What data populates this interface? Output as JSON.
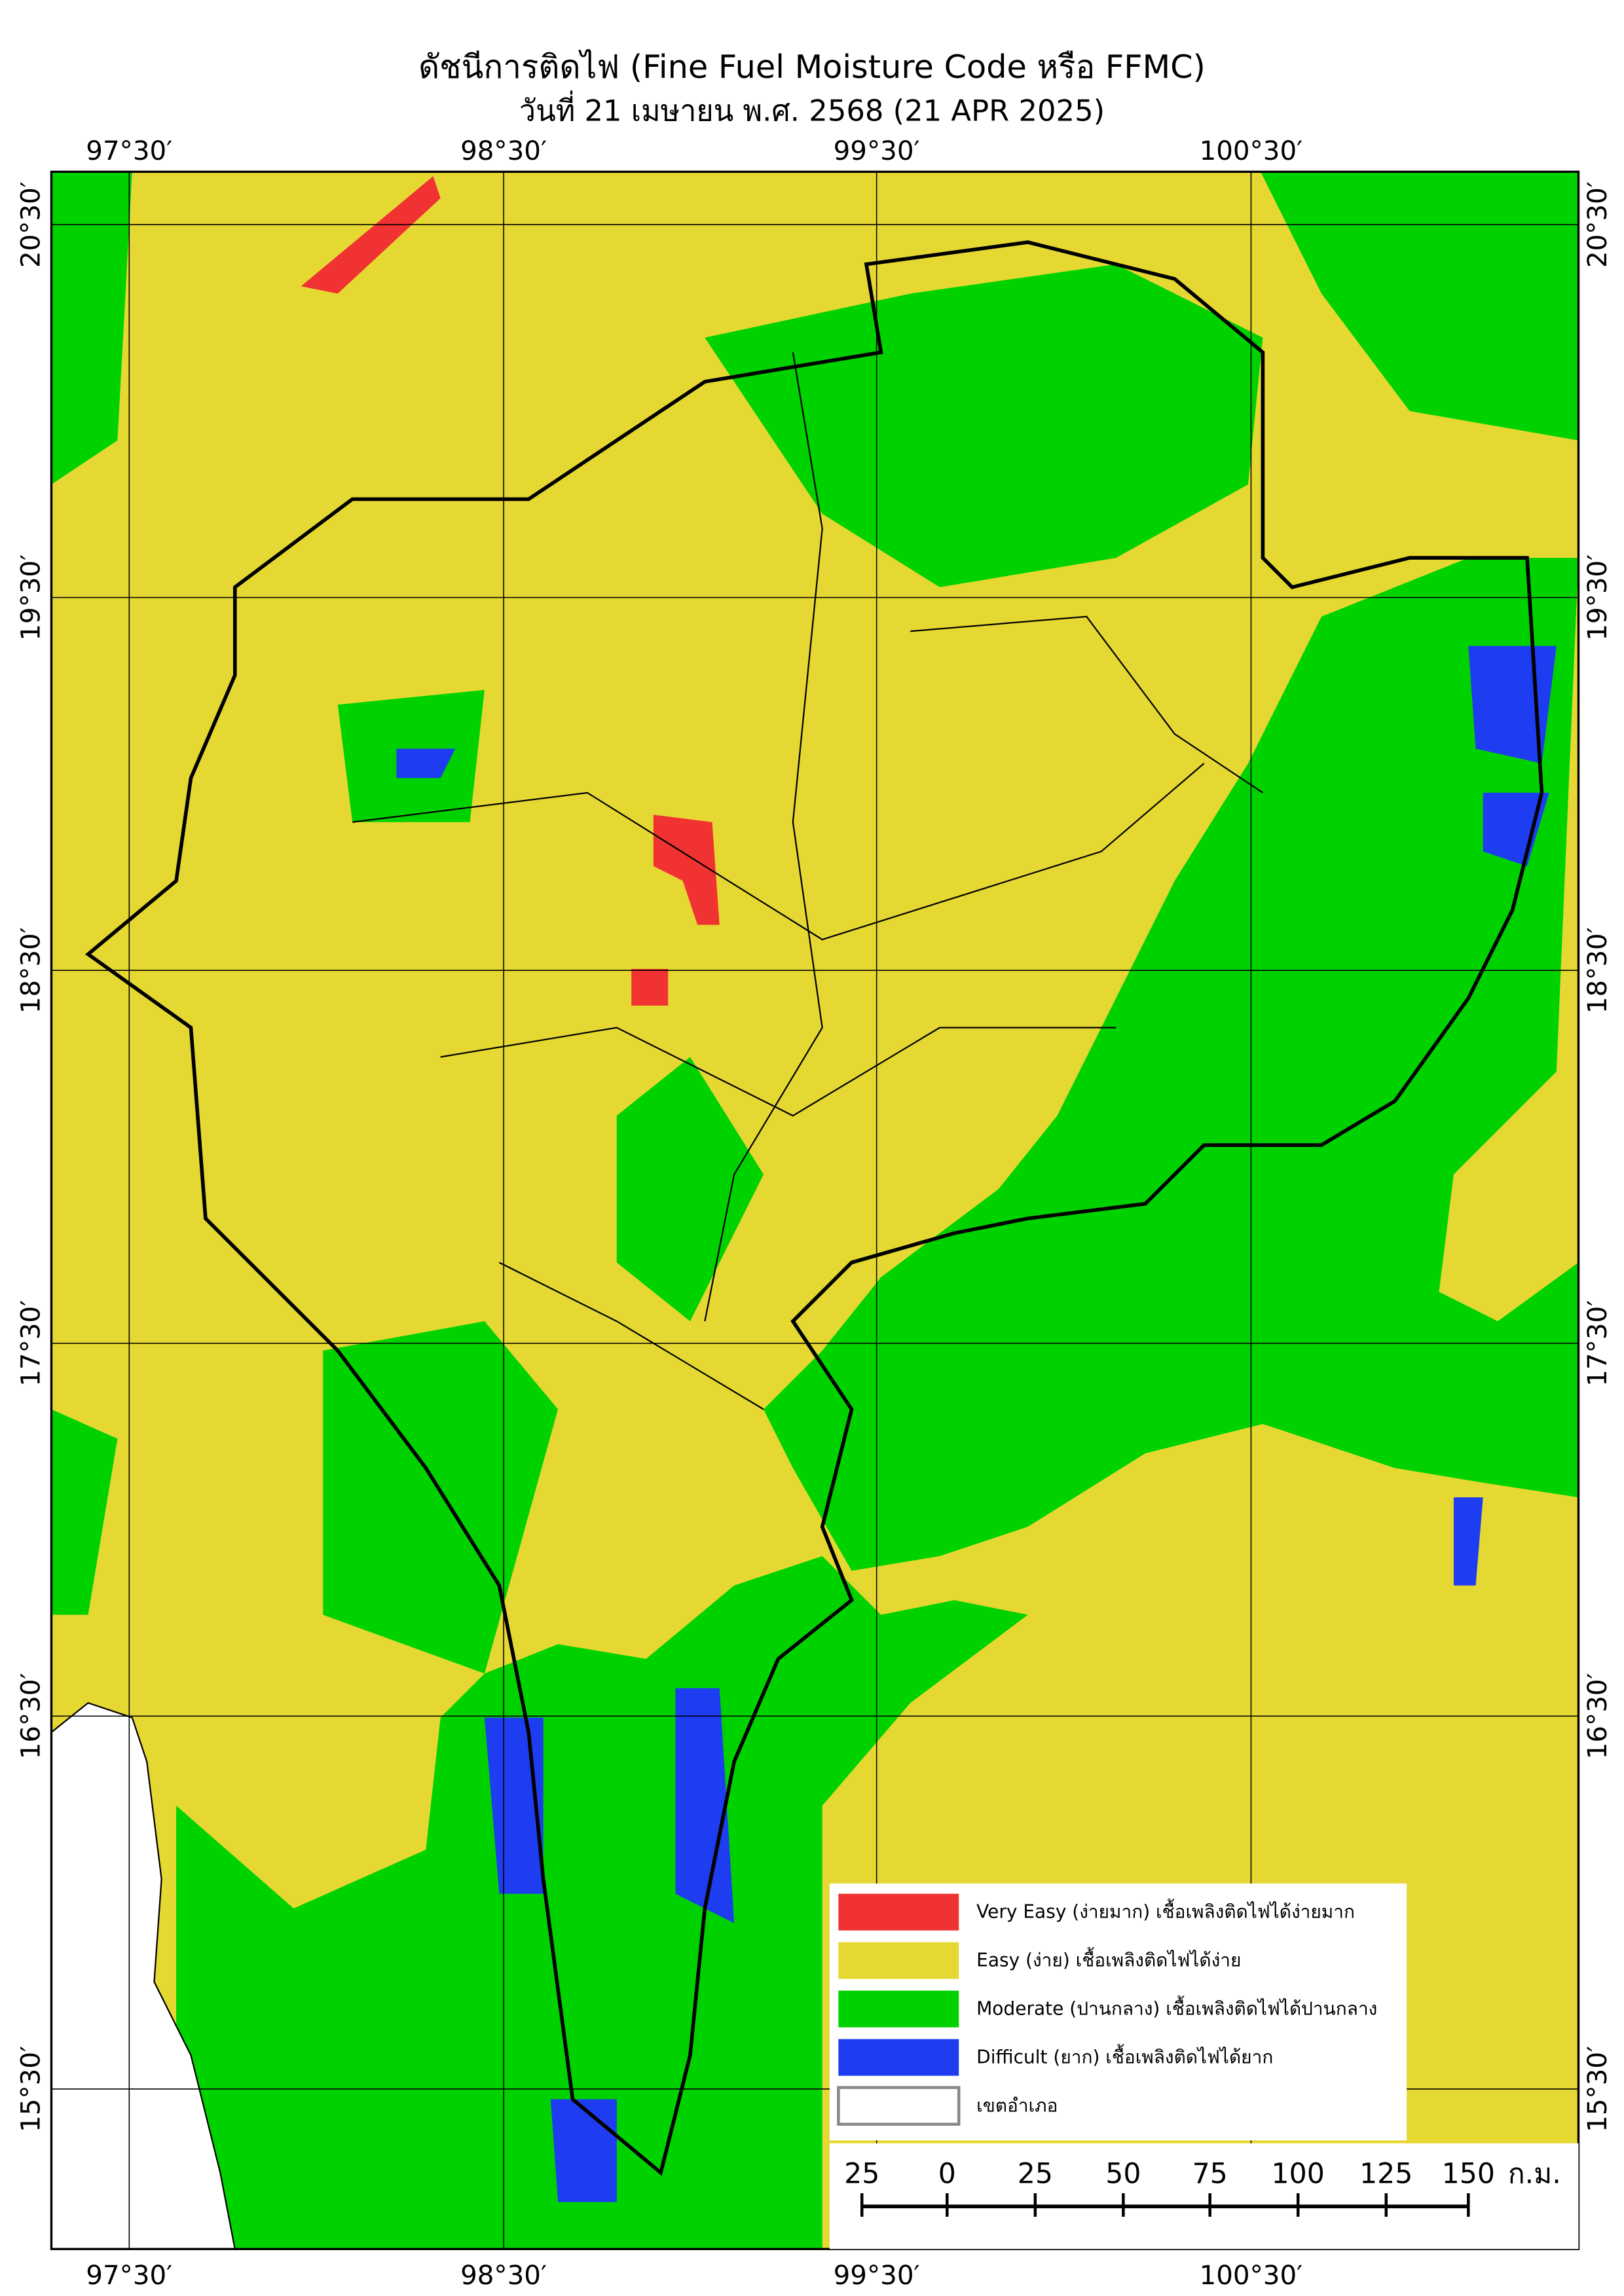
{
  "header": {
    "title": "ดัชนีการติดไฟ (Fine Fuel Moisture Code หรือ FFMC)",
    "subtitle": "วันที่ 21 เมษายน พ.ศ. 2568 (21 APR 2025)"
  },
  "map": {
    "lon_labels": [
      "97°30′",
      "98°30′",
      "99°30′",
      "100°30′"
    ],
    "lat_labels": [
      "20°30′",
      "19°30′",
      "18°30′",
      "17°30′",
      "16°30′",
      "15°30′"
    ]
  },
  "legend": [
    {
      "label": "Very Easy (ง่ายมาก) เชื้อเพลิงติดไฟได้ง่ายมาก",
      "color": "#f03232"
    },
    {
      "label": "Easy (ง่าย) เชื้อเพลิงติดไฟได้ง่าย",
      "color": "#e6d832"
    },
    {
      "label": "Moderate (ปานกลาง) เชื้อเพลิงติดไฟได้ปานกลาง",
      "color": "#00d200"
    },
    {
      "label": "Difficult (ยาก) เชื้อเพลิงติดไฟได้ยาก",
      "color": "#1e3cf0"
    },
    {
      "label": "เขตอำเภอ",
      "color": "#ffffff"
    }
  ],
  "scale_bar": {
    "labels": [
      "25",
      "0",
      "25",
      "50",
      "75",
      "100",
      "125",
      "150"
    ],
    "unit": "ก.ม."
  }
}
